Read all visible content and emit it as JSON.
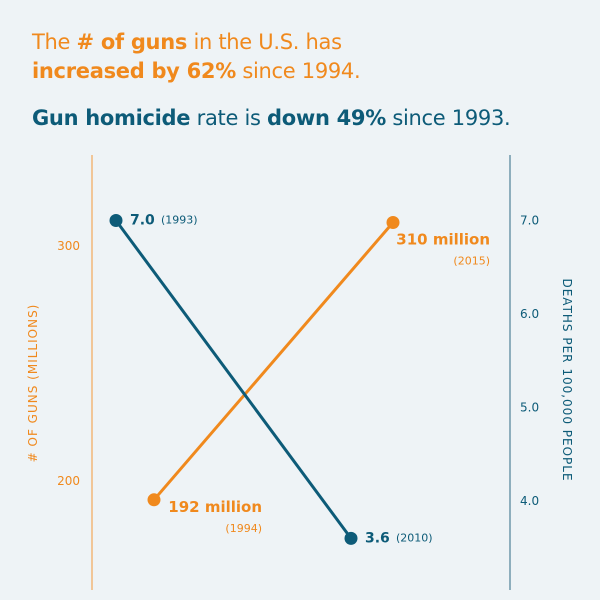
{
  "headline": {
    "line1": {
      "a": "The ",
      "b": "# of guns",
      "c": " in the U.S. has"
    },
    "line2": {
      "a": "increased by 62%",
      "b": " since 1994."
    },
    "line3": {
      "a": "Gun homicide",
      "b": " rate is ",
      "c": "down 49%",
      "d": " since 1993."
    }
  },
  "colors": {
    "guns": "#f0891d",
    "homicide": "#0d5b78",
    "background": "#eef3f6"
  },
  "chart_data": {
    "type": "line",
    "grid": false,
    "left_axis": {
      "label": "# OF GUNS (MILLIONS)",
      "ticks": [
        "200",
        "300"
      ],
      "range": [
        155,
        340
      ]
    },
    "right_axis": {
      "label": "DEATHS PER 100,000 PEOPLE",
      "ticks": [
        "4.0",
        "5.0",
        "6.0",
        "7.0"
      ],
      "range": [
        3.2,
        7.3
      ]
    },
    "series": [
      {
        "axis": "left",
        "points": [
          {
            "year": "1994",
            "value": 192,
            "label": "192 million",
            "year_label": "(1994)"
          },
          {
            "year": "2015",
            "value": 310,
            "label": "310 million",
            "year_label": "(2015)"
          }
        ]
      },
      {
        "axis": "right",
        "points": [
          {
            "year": "1993",
            "value": 7.0,
            "label": "7.0",
            "year_label": "(1993)"
          },
          {
            "year": "2010",
            "value": 3.6,
            "label": "3.6",
            "year_label": "(2010)"
          }
        ]
      }
    ]
  }
}
